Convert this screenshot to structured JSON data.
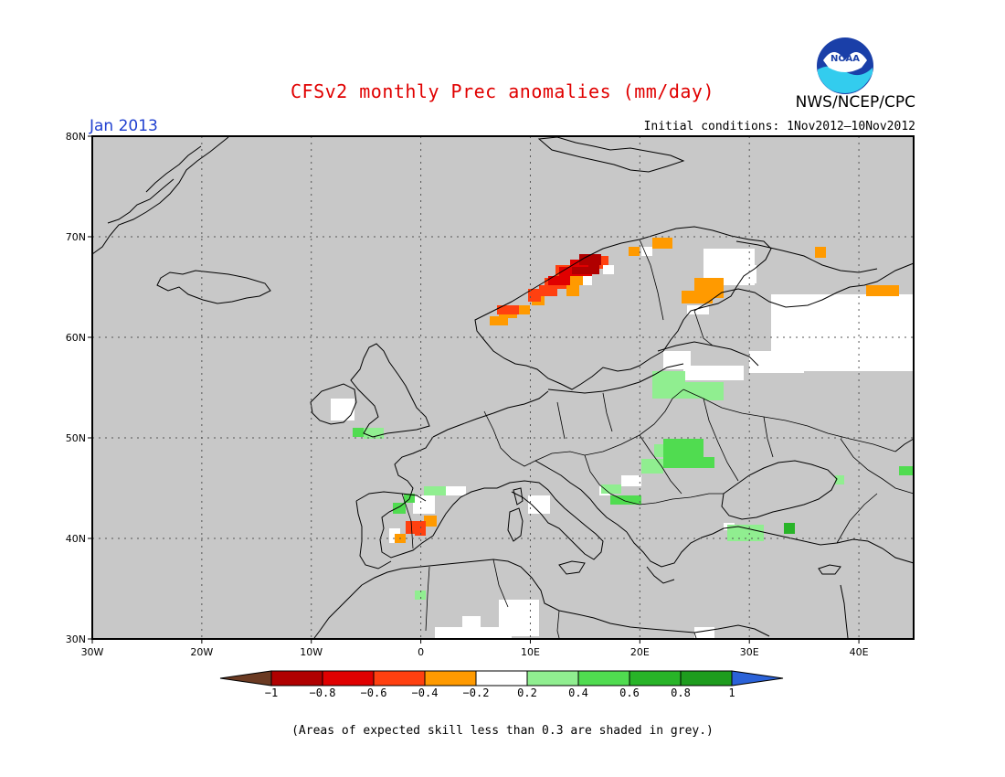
{
  "header": {
    "title": "CFSv2 monthly Prec anomalies (mm/day)",
    "agency": "NWS/NCEP/CPC",
    "logo_text": "NOAA",
    "month": "Jan 2013",
    "initial_conditions": "Initial conditions: 1Nov2012—10Nov2012"
  },
  "map": {
    "lon_range": [
      -30,
      45
    ],
    "lat_range": [
      30,
      80
    ],
    "lon_labels": [
      "30W",
      "20W",
      "10W",
      "0",
      "10E",
      "20E",
      "30E",
      "40E"
    ],
    "lat_labels": [
      "80N",
      "70N",
      "60N",
      "50N",
      "40N",
      "30N"
    ],
    "background_color": "#c8c8c8",
    "grid": "dotted"
  },
  "colorbar": {
    "labels": [
      "−1",
      "−0.8",
      "−0.6",
      "−0.4",
      "−0.2",
      "0.2",
      "0.4",
      "0.6",
      "0.8",
      "1"
    ],
    "colors": [
      "#6b3a22",
      "#b00000",
      "#e00000",
      "#ff4010",
      "#ff9a00",
      "#ffffff",
      "#90ee90",
      "#50dc50",
      "#28b428",
      "#1e9c1e",
      "#2b62d8"
    ]
  },
  "footnote": "(Areas of expected skill less than 0.3 are shaded in grey.)"
}
